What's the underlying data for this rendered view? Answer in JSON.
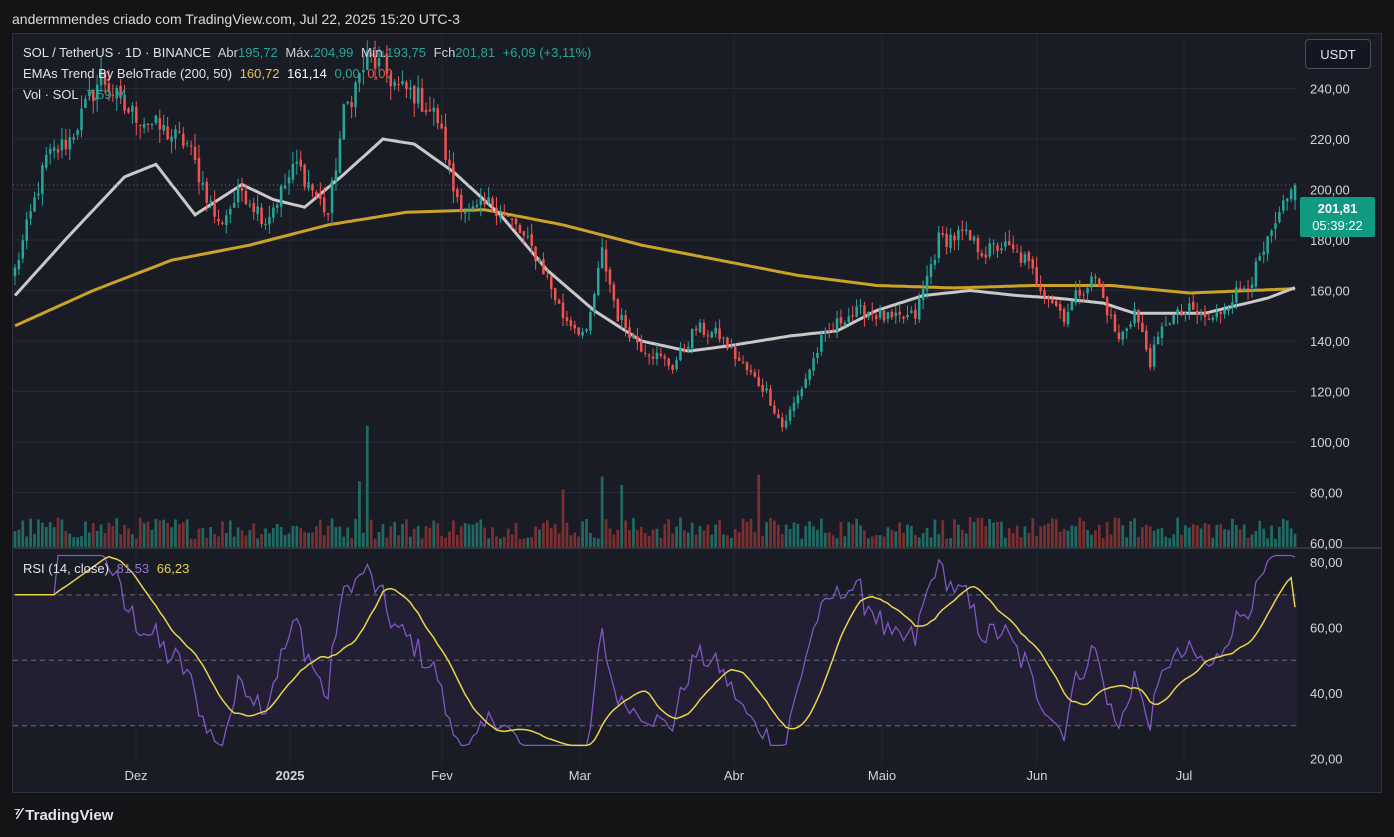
{
  "header": {
    "text": "andermmendes criado com TradingView.com, Jul 22, 2025 15:20 UTC-3"
  },
  "currency_button": "USDT",
  "price_tag": {
    "price": "201,81",
    "countdown": "05:39:22"
  },
  "legend": {
    "symbol": "SOL / TetherUS · 1D · BINANCE",
    "open_label": "Abr",
    "open": "195,72",
    "high_label": "Máx.",
    "high": "204,99",
    "low_label": "Mín.",
    "low": "193,75",
    "close_label": "Fch",
    "close": "201,81",
    "change": "+6,09 (+3,11%)",
    "ema_name": "EMAs Trend By BeloTrade (200, 50)",
    "ema200": "160,72",
    "ema50": "161,14",
    "ema_x": "0,00",
    "ema_y": "0,00",
    "vol_label": "Vol · SOL",
    "vol": "7,59 M",
    "rsi_name": "RSI (14, close)",
    "rsi": "81,53",
    "rsi_ma": "66,23"
  },
  "footer": {
    "brand": "TradingView"
  },
  "colors": {
    "up": "#26a69a",
    "down": "#ef5350",
    "ema50": "#c8c8c8",
    "ema200": "#c9a227",
    "rsi": "#7e57c2",
    "rsi_ma": "#e8d44d",
    "accent": "#0f9a81"
  },
  "chart_data": [
    {
      "type": "candlestick",
      "title": "SOL / TetherUS · 1D · BINANCE",
      "x_ticks": [
        "Dez",
        "2025",
        "Fev",
        "Mar",
        "Abr",
        "Maio",
        "Jun",
        "Jul"
      ],
      "y_ticks": [
        "60,00",
        "80,00",
        "100,00",
        "120,00",
        "140,00",
        "160,00",
        "180,00",
        "200,00",
        "220,00",
        "240,00"
      ],
      "ylim": [
        58,
        262
      ],
      "last_price": 201.81,
      "close_anchors": [
        [
          0,
          168
        ],
        [
          8,
          212
        ],
        [
          14,
          220
        ],
        [
          22,
          245
        ],
        [
          28,
          232
        ],
        [
          36,
          225
        ],
        [
          44,
          218
        ],
        [
          52,
          186
        ],
        [
          58,
          200
        ],
        [
          64,
          188
        ],
        [
          72,
          210
        ],
        [
          80,
          190
        ],
        [
          84,
          230
        ],
        [
          90,
          252
        ],
        [
          94,
          248
        ],
        [
          98,
          240
        ],
        [
          102,
          238
        ],
        [
          108,
          228
        ],
        [
          112,
          200
        ],
        [
          116,
          190
        ],
        [
          122,
          195
        ],
        [
          128,
          185
        ],
        [
          134,
          172
        ],
        [
          140,
          150
        ],
        [
          146,
          142
        ],
        [
          150,
          175
        ],
        [
          154,
          150
        ],
        [
          160,
          138
        ],
        [
          168,
          130
        ],
        [
          174,
          145
        ],
        [
          180,
          142
        ],
        [
          186,
          130
        ],
        [
          192,
          120
        ],
        [
          196,
          106
        ],
        [
          200,
          118
        ],
        [
          206,
          140
        ],
        [
          212,
          150
        ],
        [
          218,
          152
        ],
        [
          224,
          148
        ],
        [
          230,
          150
        ],
        [
          236,
          180
        ],
        [
          242,
          182
        ],
        [
          248,
          175
        ],
        [
          252,
          178
        ],
        [
          258,
          172
        ],
        [
          262,
          162
        ],
        [
          268,
          150
        ],
        [
          272,
          160
        ],
        [
          276,
          165
        ],
        [
          282,
          140
        ],
        [
          286,
          152
        ],
        [
          290,
          132
        ],
        [
          294,
          148
        ],
        [
          300,
          152
        ],
        [
          306,
          148
        ],
        [
          310,
          156
        ],
        [
          316,
          165
        ],
        [
          320,
          178
        ],
        [
          324,
          192
        ],
        [
          327,
          201.81
        ]
      ],
      "ema50_anchors": [
        [
          0,
          158
        ],
        [
          14,
          182
        ],
        [
          28,
          205
        ],
        [
          36,
          210
        ],
        [
          46,
          190
        ],
        [
          58,
          202
        ],
        [
          66,
          196
        ],
        [
          74,
          193
        ],
        [
          84,
          206
        ],
        [
          94,
          220
        ],
        [
          102,
          218
        ],
        [
          112,
          207
        ],
        [
          124,
          190
        ],
        [
          136,
          168
        ],
        [
          148,
          152
        ],
        [
          160,
          140
        ],
        [
          172,
          136
        ],
        [
          182,
          138
        ],
        [
          198,
          142
        ],
        [
          210,
          144
        ],
        [
          220,
          152
        ],
        [
          232,
          158
        ],
        [
          244,
          160
        ],
        [
          256,
          158
        ],
        [
          266,
          157
        ],
        [
          278,
          155
        ],
        [
          286,
          151
        ],
        [
          296,
          151
        ],
        [
          304,
          151
        ],
        [
          312,
          154
        ],
        [
          320,
          157
        ],
        [
          327,
          161.14
        ]
      ],
      "ema200_anchors": [
        [
          0,
          146
        ],
        [
          20,
          160
        ],
        [
          40,
          172
        ],
        [
          60,
          178
        ],
        [
          80,
          186
        ],
        [
          100,
          191
        ],
        [
          120,
          192
        ],
        [
          140,
          186
        ],
        [
          160,
          178
        ],
        [
          180,
          172
        ],
        [
          200,
          166
        ],
        [
          220,
          162
        ],
        [
          240,
          161
        ],
        [
          260,
          162
        ],
        [
          280,
          162
        ],
        [
          300,
          159
        ],
        [
          327,
          160.72
        ]
      ],
      "volume_spikes": [
        [
          90,
          28
        ],
        [
          88,
          14
        ],
        [
          140,
          12
        ],
        [
          150,
          14
        ],
        [
          190,
          15
        ],
        [
          155,
          10
        ]
      ]
    },
    {
      "type": "line",
      "title": "RSI (14, close)",
      "series": [
        {
          "name": "RSI (14, close)"
        },
        {
          "name": "RSI MA"
        }
      ],
      "y_ticks": [
        "20,00",
        "40,00",
        "60,00",
        "80,00"
      ],
      "ylim": [
        18,
        84
      ],
      "bands": [
        70,
        50,
        30
      ],
      "last_rsi": 81.53,
      "last_ma": 66.23
    }
  ]
}
